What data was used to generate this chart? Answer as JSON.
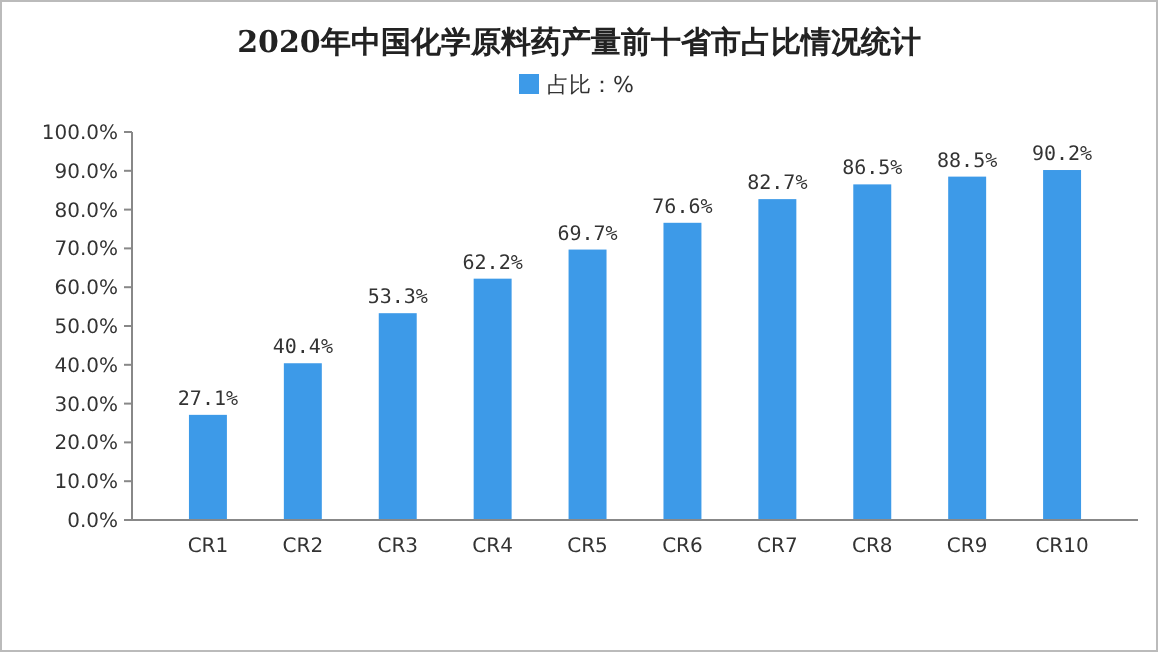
{
  "chart_data": {
    "type": "bar",
    "title": "2020年中国化学原料药产量前十省市占比情况统计",
    "categories": [
      "CR1",
      "CR2",
      "CR3",
      "CR4",
      "CR5",
      "CR6",
      "CR7",
      "CR8",
      "CR9",
      "CR10"
    ],
    "series": [
      {
        "name": "占比：%",
        "color": "#3d9ae8",
        "values": [
          27.1,
          40.4,
          53.3,
          62.2,
          69.7,
          76.6,
          82.7,
          86.5,
          88.5,
          90.2
        ],
        "value_labels": [
          "27.1%",
          "40.4%",
          "53.3%",
          "62.2%",
          "69.7%",
          "76.6%",
          "82.7%",
          "86.5%",
          "88.5%",
          "90.2%"
        ]
      }
    ],
    "ylim": [
      0,
      100
    ],
    "yticks": [
      {
        "value": 0,
        "label": "0.0%"
      },
      {
        "value": 10,
        "label": "10.0%"
      },
      {
        "value": 20,
        "label": "20.0%"
      },
      {
        "value": 30,
        "label": "30.0%"
      },
      {
        "value": 40,
        "label": "40.0%"
      },
      {
        "value": 50,
        "label": "50.0%"
      },
      {
        "value": 60,
        "label": "60.0%"
      },
      {
        "value": 70,
        "label": "70.0%"
      },
      {
        "value": 80,
        "label": "80.0%"
      },
      {
        "value": 90,
        "label": "90.0%"
      },
      {
        "value": 100,
        "label": "100.0%"
      }
    ],
    "legend": "top",
    "grid": false
  }
}
